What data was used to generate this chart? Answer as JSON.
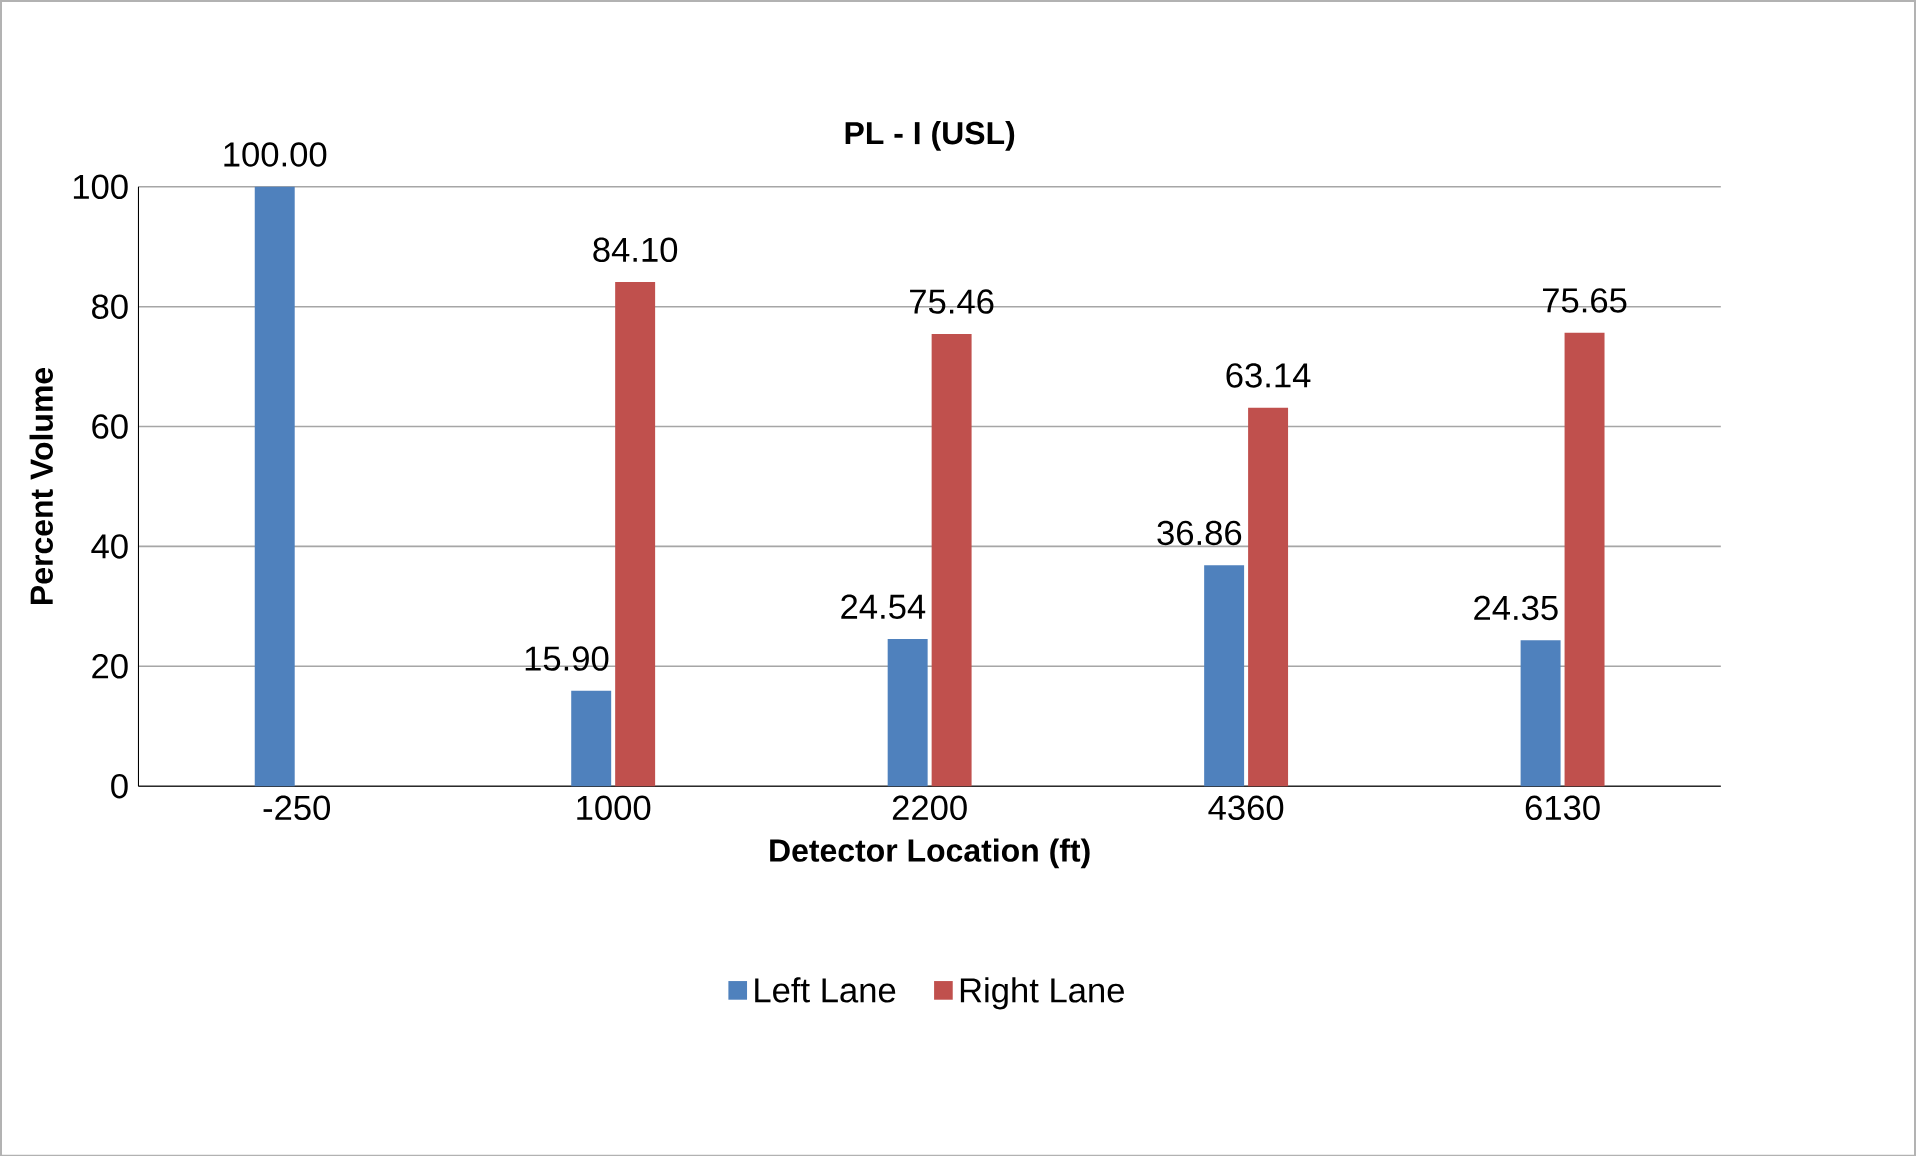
{
  "chart_data": {
    "type": "bar",
    "title": "PL - I (USL)",
    "xlabel": "Detector Location (ft)",
    "ylabel": "Percent Volume",
    "categories": [
      "-250",
      "1000",
      "2200",
      "4360",
      "6130"
    ],
    "series": [
      {
        "name": "Left Lane",
        "color": "#4f81bd",
        "values": [
          100,
          15.9,
          24.54,
          36.86,
          24.35
        ],
        "value_labels": [
          "100.00",
          "15.90",
          "24.54",
          "36.86",
          "24.35"
        ]
      },
      {
        "name": "Right Lane",
        "color": "#c0504d",
        "values": [
          null,
          84.1,
          75.46,
          63.14,
          75.65
        ],
        "value_labels": [
          null,
          "84.10",
          "75.46",
          "63.14",
          "75.65"
        ]
      }
    ],
    "ylim": [
      0,
      100
    ],
    "yticks": [
      0,
      20,
      40,
      60,
      80,
      100
    ],
    "grid": "y",
    "legend": "bottom"
  }
}
